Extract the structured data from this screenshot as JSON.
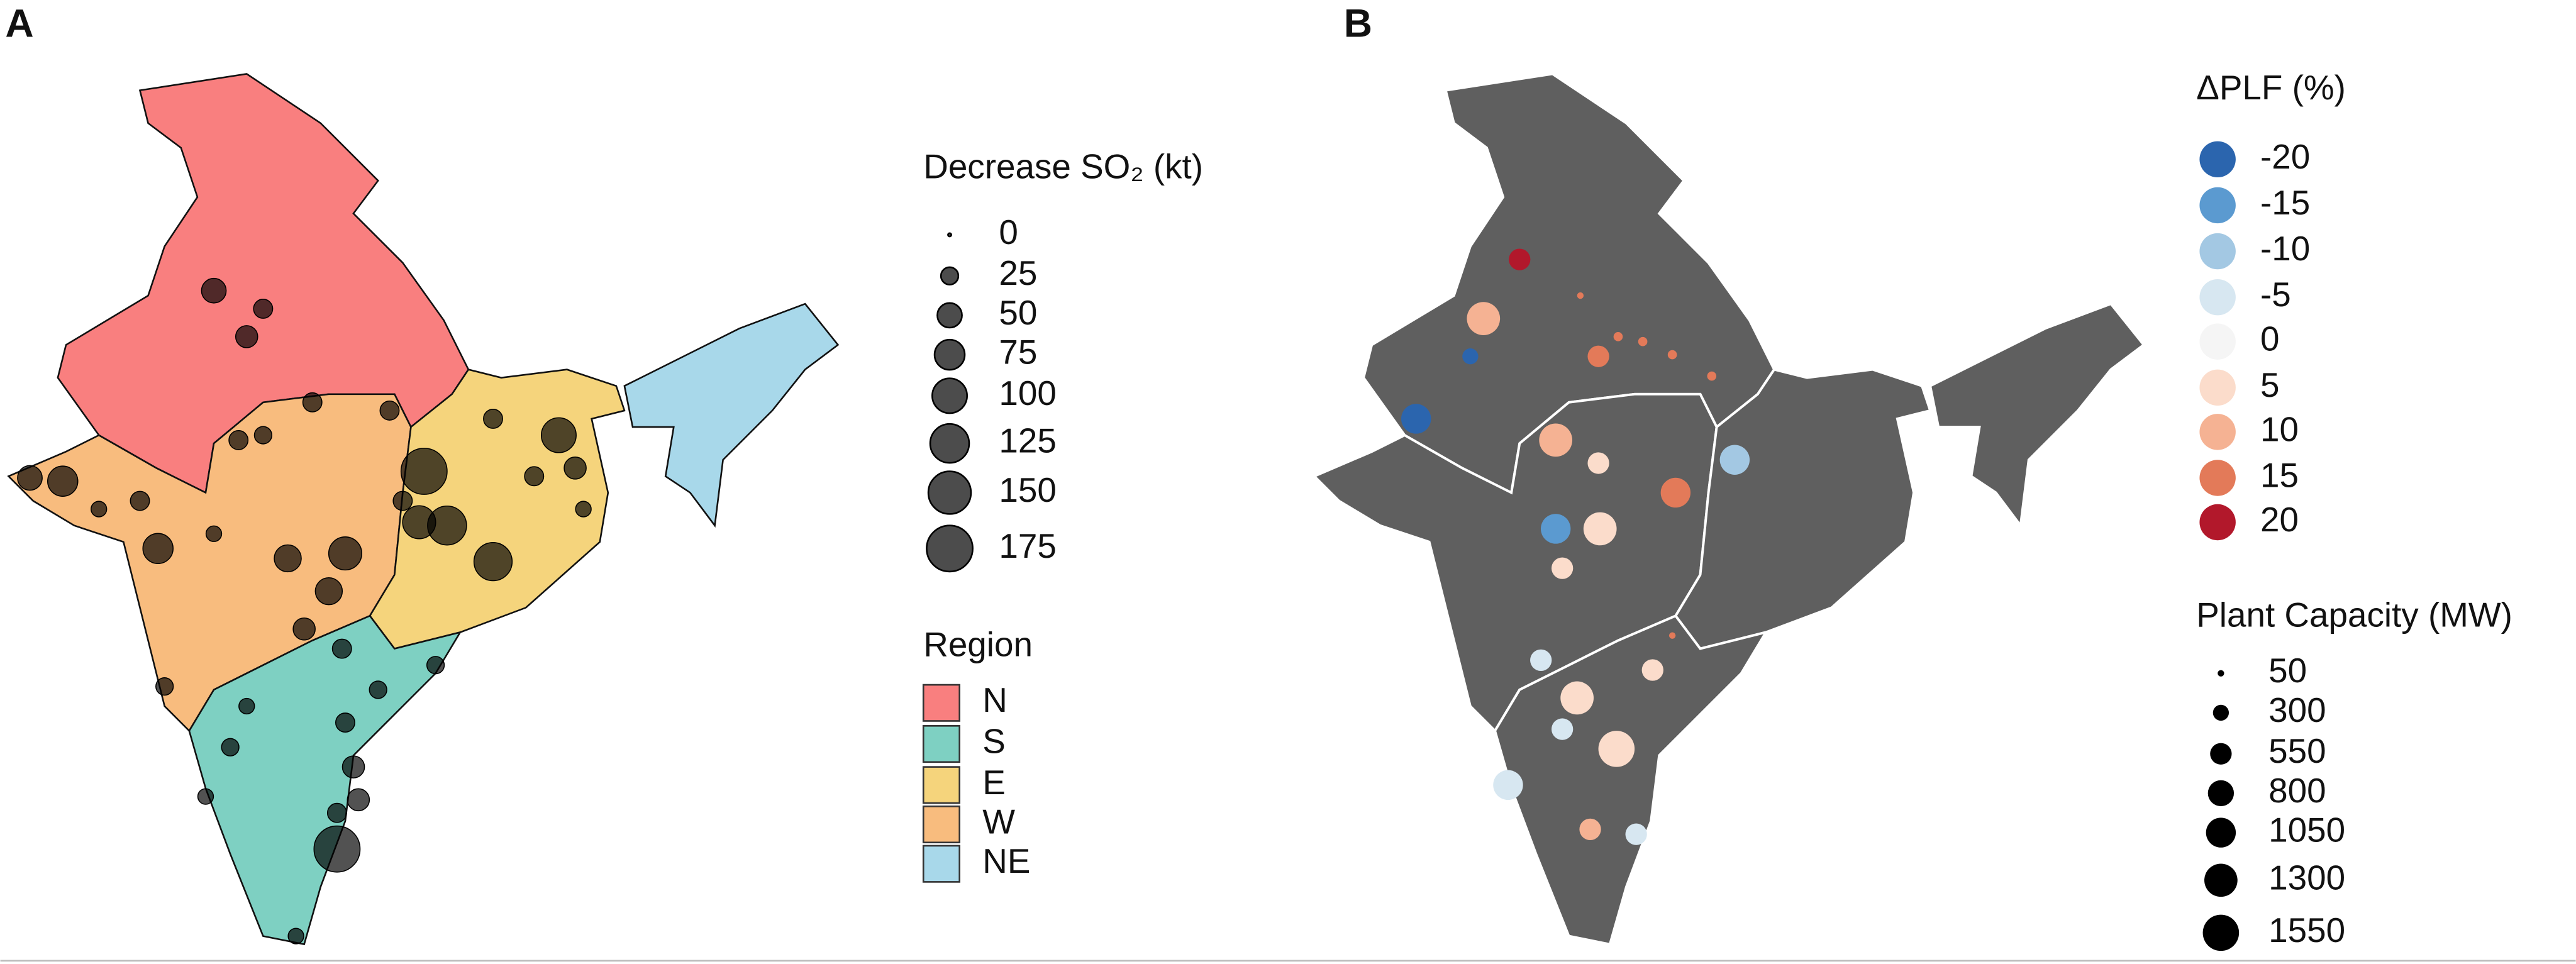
{
  "panel_a": {
    "label": "A",
    "size_legend": {
      "title": "Decrease SO₂ (kt)",
      "values": [
        0,
        25,
        50,
        75,
        100,
        125,
        150,
        175
      ]
    },
    "region_legend": {
      "title": "Region",
      "entries": [
        {
          "name": "N",
          "color": "#f97f7f"
        },
        {
          "name": "S",
          "color": "#7ed0c2"
        },
        {
          "name": "E",
          "color": "#f5d47c"
        },
        {
          "name": "W",
          "color": "#f8bc7e"
        },
        {
          "name": "NE",
          "color": "#a8d8ea"
        }
      ]
    },
    "bubbles": [
      175,
      175,
      120,
      100,
      75,
      50,
      50,
      75,
      125,
      90,
      90,
      60,
      60,
      40,
      30,
      40,
      40,
      30,
      30,
      30,
      30,
      30,
      40,
      30,
      30,
      20,
      30,
      25,
      20,
      20,
      25,
      40,
      30,
      25,
      30,
      20,
      20,
      25,
      25,
      20
    ]
  },
  "panel_b": {
    "label": "B",
    "color_legend": {
      "title": "ΔPLF (%)",
      "values": [
        -20,
        -15,
        -10,
        -5,
        0,
        5,
        10,
        15,
        20
      ],
      "colors": [
        "#2b65ae",
        "#5b9ad0",
        "#a3c8e3",
        "#d7e7f1",
        "#f5f5f5",
        "#fbdccb",
        "#f5b293",
        "#e37a59",
        "#b2182b"
      ]
    },
    "capacity_legend": {
      "title": "Plant Capacity (MW)",
      "values": [
        50,
        300,
        550,
        800,
        1050,
        1300,
        1550
      ]
    },
    "plants": {
      "dplf": [
        20,
        10,
        -20,
        -20,
        10,
        5,
        15,
        -10,
        -15,
        5,
        5,
        15,
        15,
        15,
        15,
        15,
        15,
        -5,
        5,
        15,
        5,
        -5,
        5,
        -5,
        10,
        -5
      ],
      "capacity": [
        550,
        1300,
        300,
        1050,
        1300,
        550,
        1050,
        1050,
        1050,
        1300,
        550,
        550,
        50,
        100,
        100,
        100,
        100,
        550,
        550,
        50,
        1300,
        550,
        1550,
        1050,
        550,
        550
      ]
    }
  }
}
